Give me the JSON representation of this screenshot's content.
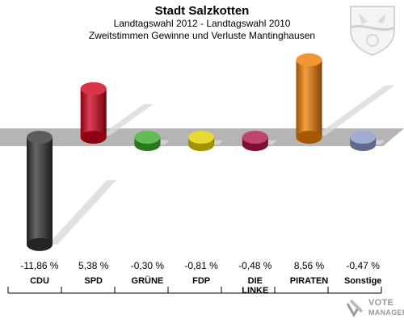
{
  "header": {
    "title": "Stadt Salzkotten",
    "subtitle": "Landtagswahl 2012 - Landtagswahl 2010",
    "subtitle2": "Zweitstimmen Gewinne und Verluste Mantinghausen"
  },
  "logo": {
    "line1": "VOTE",
    "line2": "MANAGER"
  },
  "chart_data": {
    "type": "bar",
    "categories": [
      "CDU",
      "SPD",
      "GRÜNE",
      "FDP",
      "DIE LINKE",
      "PIRATEN",
      "Sonstige"
    ],
    "category_labels": [
      [
        "CDU"
      ],
      [
        "SPD"
      ],
      [
        "GRÜNE"
      ],
      [
        "FDP"
      ],
      [
        "DIE",
        "LINKE"
      ],
      [
        "PIRATEN"
      ],
      [
        "Sonstige"
      ]
    ],
    "values": [
      -11.86,
      5.38,
      -0.3,
      -0.81,
      -0.48,
      8.56,
      -0.47
    ],
    "value_labels": [
      "-11,86 %",
      "5,38 %",
      "-0,30 %",
      "-0,81 %",
      "-0,48 %",
      "8,56 %",
      "-0,47 %"
    ],
    "colors": [
      "#333333",
      "#d0021b",
      "#3caa2a",
      "#e6d000",
      "#b0154a",
      "#f07d00",
      "#8899c8"
    ],
    "title": "",
    "xlabel": "",
    "ylabel": "",
    "ylim": [
      -12,
      9
    ],
    "grid": false,
    "legend": "none"
  }
}
